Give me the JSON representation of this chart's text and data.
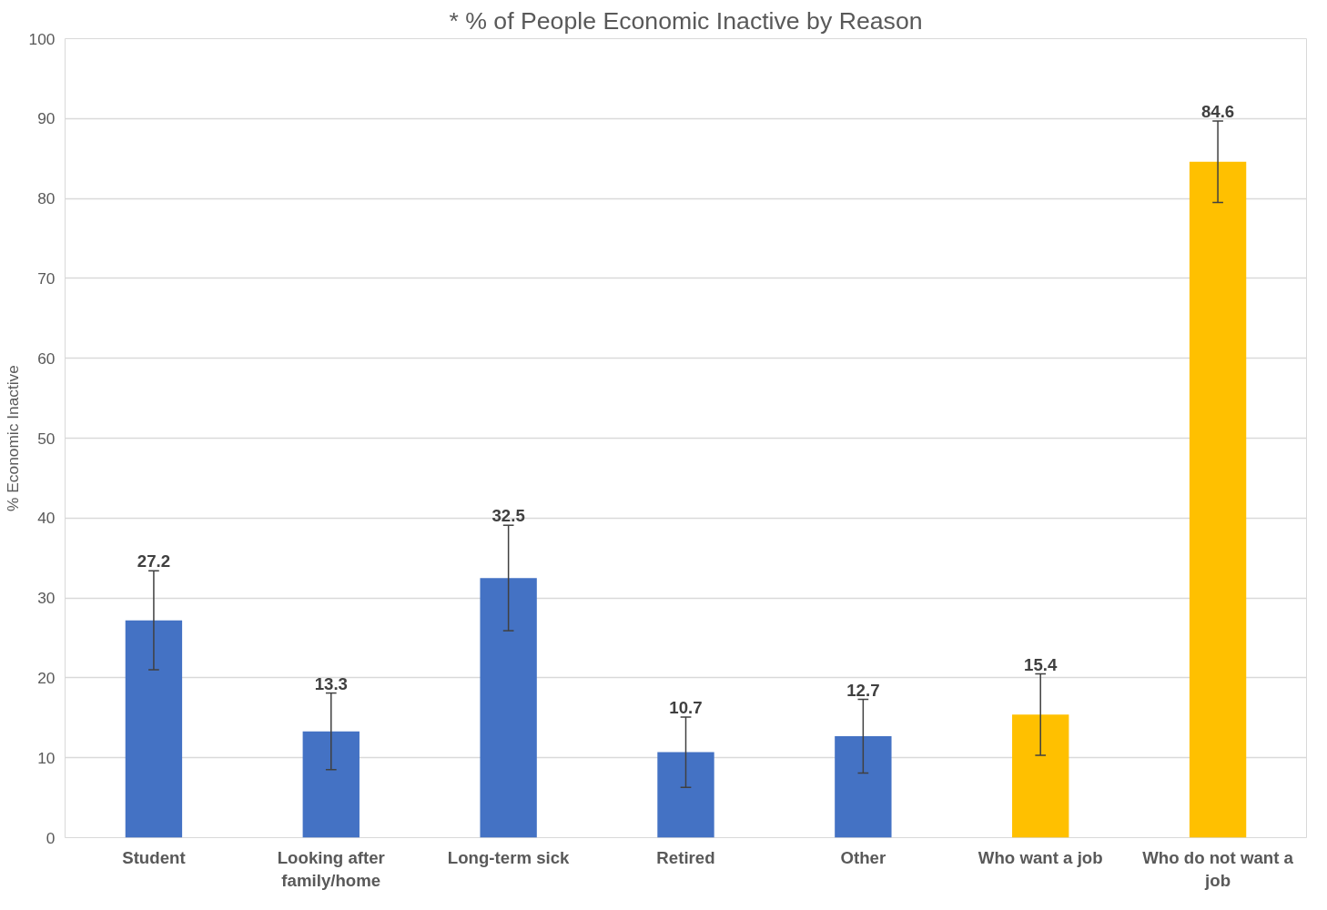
{
  "chart_data": {
    "type": "bar",
    "title": "* % of People Economic Inactive by Reason",
    "ylabel": "% Economic Inactive",
    "categories": [
      "Student",
      "Looking after family/home",
      "Long-term sick",
      "Retired",
      "Other",
      "Who want a job",
      "Who do not want a job"
    ],
    "values": [
      27.2,
      13.3,
      32.5,
      10.7,
      12.7,
      15.4,
      84.6
    ],
    "errors": [
      6.2,
      4.8,
      6.6,
      4.4,
      4.6,
      5.1,
      5.1
    ],
    "colors": [
      "#4472c4",
      "#4472c4",
      "#4472c4",
      "#4472c4",
      "#4472c4",
      "#ffc000",
      "#ffc000"
    ],
    "ylim": [
      0,
      100
    ],
    "yticks": [
      0,
      10,
      20,
      30,
      40,
      50,
      60,
      70,
      80,
      90,
      100
    ],
    "grid": "y",
    "data_labels": true
  }
}
